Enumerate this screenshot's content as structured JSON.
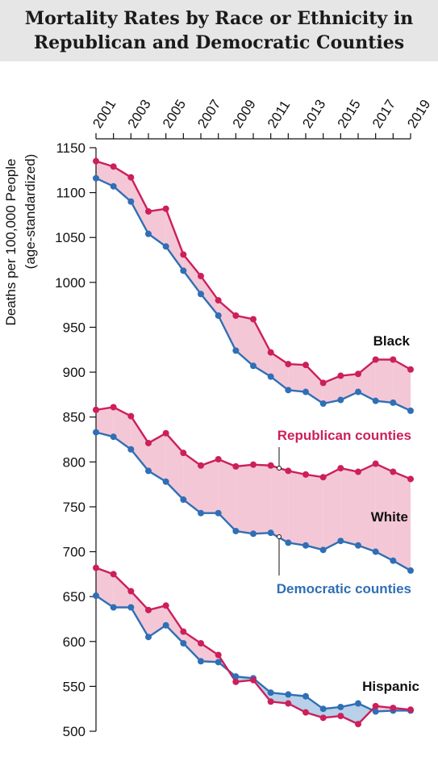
{
  "title_line1": "Mortality Rates by Race or Ethnicity in",
  "title_line2": "Republican and Democratic Counties",
  "colors": {
    "republican": "#cc1f5c",
    "democratic": "#2f6fb5",
    "rep_fill": "#f4c7d6",
    "dem_fill": "#b8d0e8",
    "title_band": "#e6e6e6"
  },
  "chart_data": {
    "type": "line",
    "title": "Mortality Rates by Race or Ethnicity in Republican and Democratic Counties",
    "ylabel_line1": "Deaths per 100,000 People",
    "ylabel_line2": "(age-standardized)",
    "ylim": [
      500,
      1150
    ],
    "yticks": [
      500,
      550,
      600,
      650,
      700,
      750,
      800,
      850,
      900,
      950,
      1000,
      1050,
      1100,
      1150
    ],
    "xlim": [
      2001,
      2019
    ],
    "x_tick_labels": [
      2001,
      2003,
      2005,
      2007,
      2009,
      2011,
      2013,
      2015,
      2017,
      2019
    ],
    "x": [
      2001,
      2002,
      2003,
      2004,
      2005,
      2006,
      2007,
      2008,
      2009,
      2010,
      2011,
      2012,
      2013,
      2014,
      2015,
      2016,
      2017,
      2018,
      2019
    ],
    "grid": false,
    "groups": [
      {
        "name": "Black",
        "republican": [
          1135,
          1129,
          1117,
          1079,
          1082,
          1031,
          1007,
          980,
          963,
          959,
          922,
          909,
          908,
          888,
          896,
          898,
          914,
          914,
          903
        ],
        "democratic": [
          1116,
          1107,
          1090,
          1054,
          1040,
          1013,
          987,
          963,
          924,
          907,
          895,
          880,
          878,
          865,
          869,
          878,
          868,
          866,
          857
        ]
      },
      {
        "name": "White",
        "republican": [
          858,
          861,
          851,
          821,
          832,
          810,
          796,
          803,
          795,
          797,
          796,
          790,
          786,
          783,
          793,
          789,
          798,
          789,
          781
        ],
        "democratic": [
          833,
          828,
          814,
          790,
          778,
          758,
          743,
          743,
          723,
          720,
          721,
          710,
          707,
          702,
          712,
          707,
          700,
          690,
          679
        ]
      },
      {
        "name": "Hispanic",
        "republican": [
          682,
          675,
          656,
          635,
          640,
          611,
          598,
          585,
          555,
          557,
          533,
          531,
          521,
          515,
          517,
          508,
          528,
          526,
          524
        ],
        "democratic": [
          651,
          638,
          638,
          605,
          618,
          598,
          578,
          577,
          561,
          559,
          543,
          541,
          539,
          525,
          527,
          531,
          522,
          523,
          523
        ]
      }
    ],
    "annotations": {
      "republican_label": "Republican counties",
      "democratic_label": "Democratic counties"
    }
  }
}
